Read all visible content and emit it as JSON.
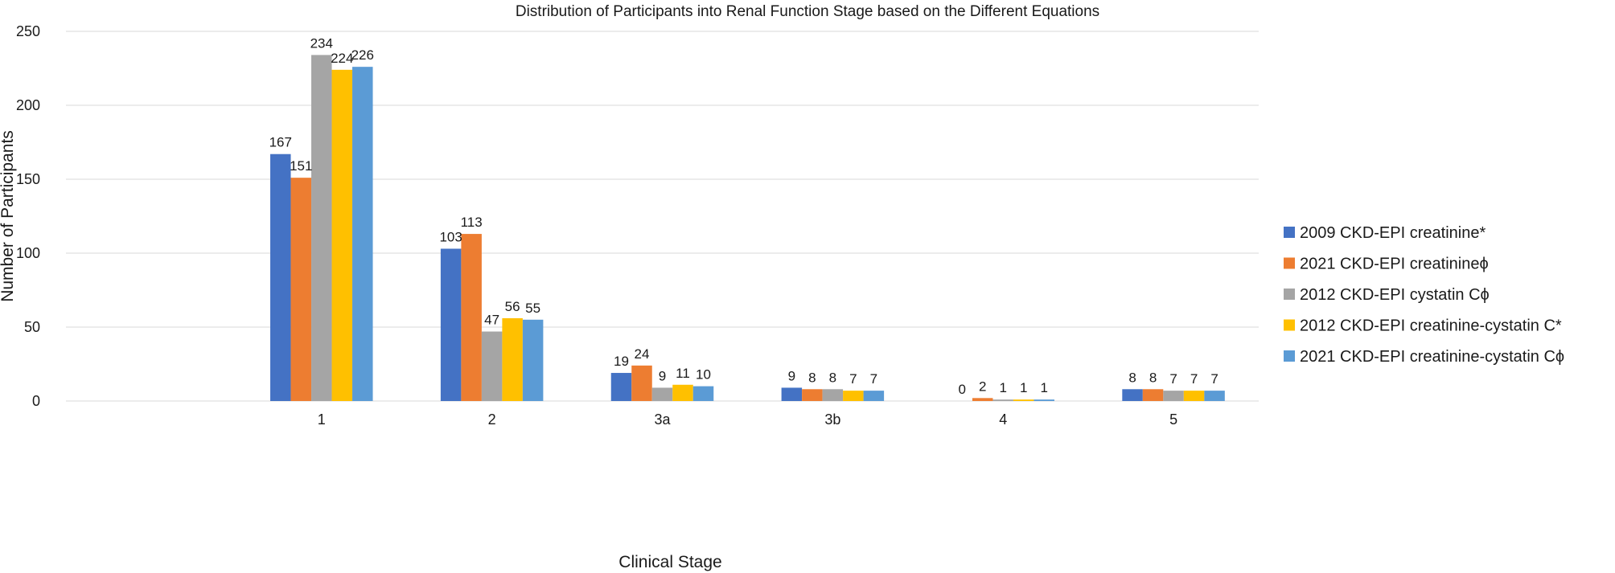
{
  "chart_data": {
    "type": "bar",
    "title": "Distribution of Participants into Renal Function Stage based on the Different Equations",
    "xlabel": "Clinical Stage",
    "ylabel": "Number of Participants",
    "ylim": [
      0,
      250
    ],
    "yticks": [
      0,
      50,
      100,
      150,
      200,
      250
    ],
    "grid": true,
    "legend_position": "right",
    "categories": [
      "",
      "1",
      "2",
      "3a",
      "3b",
      "4",
      "5"
    ],
    "series": [
      {
        "name": "2009 CKD-EPI creatinine*",
        "color": "#4472C4",
        "values": [
          null,
          167,
          103,
          19,
          9,
          0,
          8
        ],
        "labels": [
          "",
          "167",
          "103",
          "19",
          "9",
          "0",
          "8"
        ]
      },
      {
        "name": "2021 CKD-EPI creatinineϕ",
        "color": "#ED7D31",
        "values": [
          null,
          151,
          113,
          24,
          8,
          2,
          8
        ],
        "labels": [
          "",
          "151",
          "113",
          "24",
          "8",
          "2",
          "8"
        ]
      },
      {
        "name": "2012 CKD-EPI cystatin Cϕ",
        "color": "#A5A5A5",
        "values": [
          null,
          234,
          47,
          9,
          8,
          1,
          7
        ],
        "labels": [
          "",
          "234",
          "47",
          "9",
          "8",
          "1",
          "7"
        ]
      },
      {
        "name": "2012 CKD-EPI creatinine-cystatin C*",
        "color": "#FFC000",
        "values": [
          null,
          224,
          56,
          11,
          7,
          1,
          7
        ],
        "labels": [
          "",
          "224",
          "56",
          "11",
          "7",
          "1",
          "7"
        ]
      },
      {
        "name": "2021 CKD-EPI creatinine-cystatin Cϕ",
        "color": "#5B9BD5",
        "values": [
          null,
          226,
          55,
          10,
          7,
          1,
          7
        ],
        "labels": [
          "",
          "226",
          "55",
          "10",
          "7",
          "1",
          "7"
        ]
      }
    ]
  }
}
